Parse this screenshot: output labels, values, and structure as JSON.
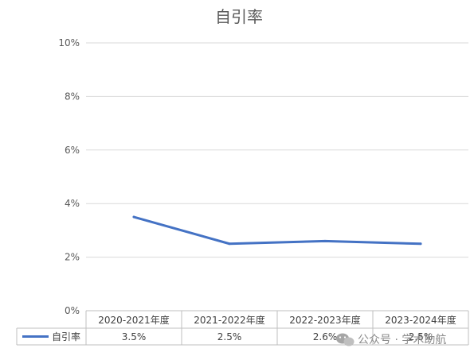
{
  "chart_data": {
    "type": "line",
    "title": "自引率",
    "xlabel": "",
    "ylabel": "",
    "categories": [
      "2020-2021年度",
      "2021-2022年度",
      "2022-2023年度",
      "2023-2024年度"
    ],
    "ylim": [
      0,
      10
    ],
    "y_ticks": [
      0,
      2,
      4,
      6,
      8,
      10
    ],
    "y_tick_labels": [
      "0%",
      "2%",
      "4%",
      "6%",
      "8%",
      "10%"
    ],
    "grid": true,
    "legend": "data-table",
    "series": [
      {
        "name": "自引率",
        "values": [
          3.5,
          2.5,
          2.6,
          2.5
        ],
        "labels": [
          "3.5%",
          "2.5%",
          "2.6%",
          "2.5%"
        ],
        "color": "#4472c4"
      }
    ]
  },
  "watermark": {
    "text": "公众号 · 学术助航",
    "icon": "wechat-icon"
  }
}
